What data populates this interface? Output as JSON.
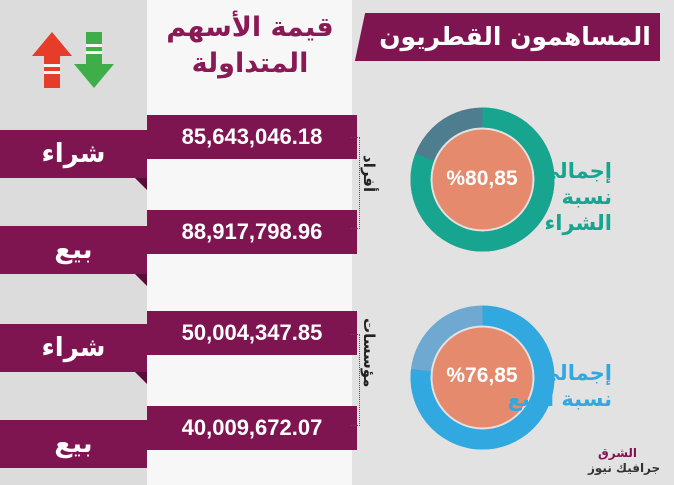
{
  "header": {
    "title": "المساهمون القطريون",
    "value_header_line1": "قيمة الأسهم",
    "value_header_line2": "المتداولة"
  },
  "groups": {
    "individuals_label": "أفراد",
    "institutions_label": "مؤسسات"
  },
  "rows": [
    {
      "action": "شراء",
      "value": "85,643,046.18"
    },
    {
      "action": "بيع",
      "value": "88,917,798.96"
    },
    {
      "action": "شراء",
      "value": "50,004,347.85"
    },
    {
      "action": "بيع",
      "value": "40,009,672.07"
    }
  ],
  "rings": [
    {
      "label_line1": "إجمالي",
      "label_line2": "نسبة الشراء",
      "percent_text": "%80,85",
      "value": 80.85,
      "ring_color": "#17a58f",
      "rest_color": "#4d7d8e",
      "text_color": "#17a58f"
    },
    {
      "label_line1": "إجمالي",
      "label_line2": "نسبة البيع",
      "percent_text": "%76,85",
      "value": 76.85,
      "ring_color": "#32a8e0",
      "rest_color": "#6fa8d0",
      "text_color": "#32a8e0"
    }
  ],
  "colors": {
    "brand": "#7f1550",
    "center": "#e58a6d",
    "arrow_up": "#e63c2a",
    "arrow_down": "#3fae49"
  },
  "icons": {
    "trend": "up-down-arrows-icon"
  },
  "logo": {
    "line1": "الشرق",
    "line2": "جرافيك نيوز"
  }
}
